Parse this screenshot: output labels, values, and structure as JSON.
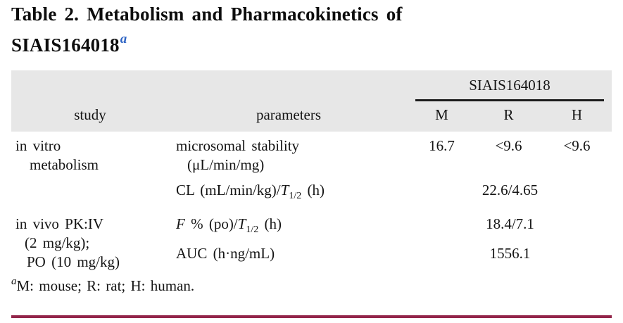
{
  "title": {
    "line1": "Table 2. Metabolism and Pharmacokinetics of",
    "line2": "SIAIS164018",
    "marker": "a"
  },
  "table": {
    "group_header": "SIAIS164018",
    "columns": {
      "study": "study",
      "parameters": "parameters",
      "m": "M",
      "r": "R",
      "h": "H"
    },
    "rows": {
      "row1": {
        "study_line1": "in vitro",
        "study_line2": "metabolism",
        "param_line1": "microsomal stability",
        "param_line2": "(μL/min/mg)",
        "m": "16.7",
        "r": "<9.6",
        "h": "<9.6"
      },
      "row2": {
        "param_prefix": "CL (mL/min/kg)/",
        "param_t": "T",
        "param_sub": "1/2",
        "param_suffix": " (h)",
        "value": "22.6/4.65"
      },
      "row3": {
        "study_line1": "in vivo PK:IV",
        "study_line2": "(2 mg/kg);",
        "study_line3": "PO (10 mg/kg)",
        "param_f": "F",
        "param_mid": " % (po)/",
        "param_t": "T",
        "param_sub": "1/2",
        "param_suffix": " (h)",
        "value": "18.4/7.1"
      },
      "row4": {
        "param": "AUC (h·ng/mL)",
        "value": "1556.1"
      }
    }
  },
  "footnote": {
    "marker": "a",
    "text": "M: mouse; R: rat; H: human."
  },
  "colors": {
    "header_background": "#e7e7e7",
    "group_rule": "#1c1c1c",
    "footnote_marker_blue": "#2e64c4",
    "bottom_rule_maroon": "#93254a",
    "text": "#141414"
  }
}
